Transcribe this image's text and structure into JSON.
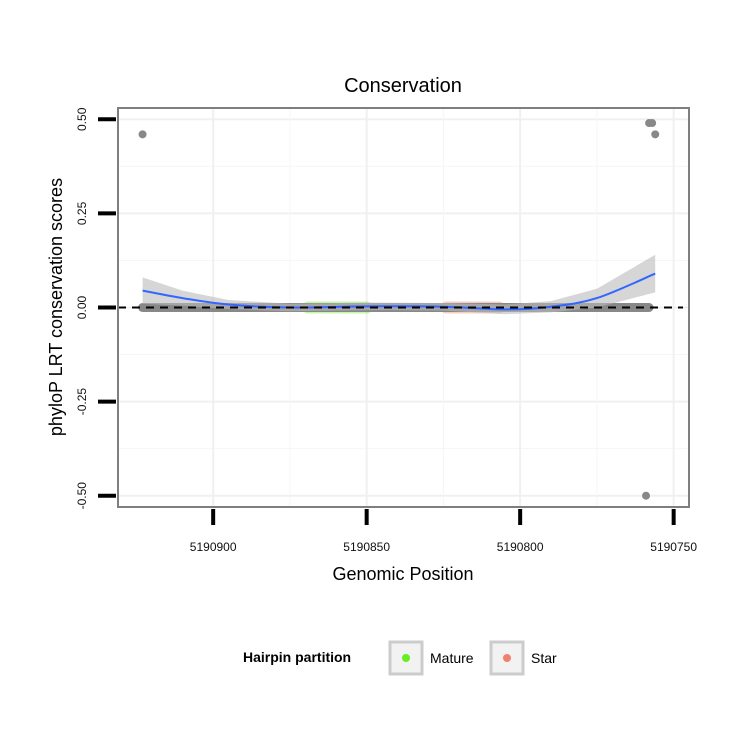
{
  "chart_data": {
    "type": "scatter",
    "title": "Conservation",
    "xlabel": "Genomic Position",
    "ylabel": "phyloP LRT conservation scores",
    "x_reversed": true,
    "xlim": [
      5190931,
      5190745
    ],
    "ylim": [
      -0.53,
      0.53
    ],
    "x_ticks": [
      5190900,
      5190850,
      5190800,
      5190750
    ],
    "x_tick_labels": [
      "5190900",
      "5190850",
      "5190800",
      "5190750"
    ],
    "y_ticks": [
      -0.5,
      -0.25,
      0.0,
      0.25,
      0.5
    ],
    "y_tick_labels": [
      "-0.50",
      "-0.25",
      "0.00",
      "0.25",
      "0.50"
    ],
    "reference_line": {
      "y": 0.0,
      "style": "dashed",
      "color": "#000000"
    },
    "points": {
      "color": "#888888",
      "outliers": [
        {
          "x": 5190923,
          "y": 0.46
        },
        {
          "x": 5190758,
          "y": 0.49
        },
        {
          "x": 5190757,
          "y": 0.49
        },
        {
          "x": 5190756,
          "y": 0.46
        },
        {
          "x": 5190759,
          "y": -0.5
        }
      ],
      "baseline": {
        "x_from": 5190923,
        "x_to": 5190758,
        "y": 0.0
      }
    },
    "partitions": [
      {
        "name": "Mature",
        "color": "#66ee22",
        "x_from": 5190871,
        "x_to": 5190848
      },
      {
        "name": "Star",
        "color": "#f08070",
        "x_from": 5190826,
        "x_to": 5190805
      }
    ],
    "smooth": {
      "color": "#3366ff",
      "ci_color": "#bbbbbb",
      "curve": [
        {
          "x": 5190923,
          "y": 0.045,
          "ci": 0.035
        },
        {
          "x": 5190910,
          "y": 0.025,
          "ci": 0.02
        },
        {
          "x": 5190895,
          "y": 0.008,
          "ci": 0.012
        },
        {
          "x": 5190875,
          "y": 0.0,
          "ci": 0.01
        },
        {
          "x": 5190850,
          "y": 0.003,
          "ci": 0.01
        },
        {
          "x": 5190825,
          "y": 0.002,
          "ci": 0.01
        },
        {
          "x": 5190805,
          "y": -0.005,
          "ci": 0.013
        },
        {
          "x": 5190790,
          "y": 0.002,
          "ci": 0.015
        },
        {
          "x": 5190775,
          "y": 0.025,
          "ci": 0.025
        },
        {
          "x": 5190756,
          "y": 0.09,
          "ci": 0.05
        }
      ]
    },
    "legend": {
      "title": "Hairpin partition",
      "placement": "bottom",
      "entries": [
        {
          "label": "Mature",
          "color": "#66ee22"
        },
        {
          "label": "Star",
          "color": "#f08070"
        }
      ]
    },
    "grid": true
  }
}
